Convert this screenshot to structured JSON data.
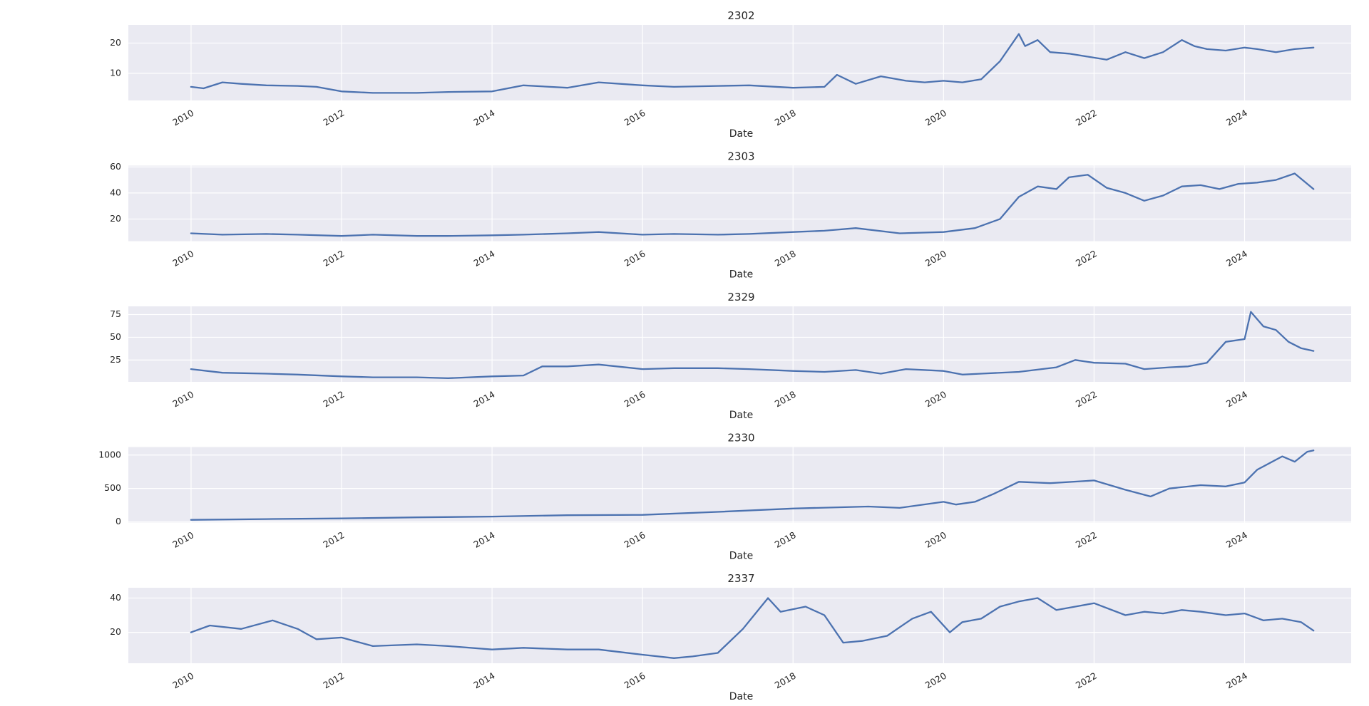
{
  "chart_data": [
    {
      "type": "line",
      "title": "2302",
      "xlabel": "Date",
      "ylabel": "",
      "grid": true,
      "xlim": [
        "2009-03",
        "2025-06"
      ],
      "ylim": [
        1,
        26
      ],
      "yticks": [
        10,
        20
      ],
      "xticks": [
        "2010",
        "2012",
        "2014",
        "2016",
        "2018",
        "2020",
        "2022",
        "2024"
      ],
      "series": [
        {
          "color": "#4c72b0",
          "x": [
            "2010-01",
            "2010-03",
            "2010-06",
            "2010-09",
            "2011-01",
            "2011-06",
            "2011-09",
            "2012-01",
            "2012-06",
            "2013-01",
            "2013-06",
            "2014-01",
            "2014-06",
            "2015-01",
            "2015-06",
            "2016-01",
            "2016-06",
            "2017-01",
            "2017-06",
            "2018-01",
            "2018-06",
            "2018-08",
            "2018-11",
            "2019-03",
            "2019-07",
            "2019-10",
            "2020-01",
            "2020-04",
            "2020-07",
            "2020-10",
            "2021-01",
            "2021-02",
            "2021-04",
            "2021-06",
            "2021-09",
            "2021-12",
            "2022-03",
            "2022-06",
            "2022-09",
            "2022-12",
            "2023-03",
            "2023-05",
            "2023-07",
            "2023-10",
            "2024-01",
            "2024-03",
            "2024-06",
            "2024-09",
            "2024-12"
          ],
          "values": [
            5.5,
            5.0,
            7.0,
            6.5,
            6.0,
            5.8,
            5.5,
            4.0,
            3.5,
            3.5,
            3.8,
            4.0,
            6.0,
            5.2,
            7.0,
            6.0,
            5.5,
            5.8,
            6.0,
            5.2,
            5.5,
            9.5,
            6.5,
            9.0,
            7.5,
            7.0,
            7.5,
            7.0,
            8.0,
            14.0,
            23.0,
            19.0,
            21.0,
            17.0,
            16.5,
            15.5,
            14.5,
            17.0,
            15.0,
            17.0,
            21.0,
            19.0,
            18.0,
            17.5,
            18.5,
            18.0,
            17.0,
            18.0,
            18.5
          ]
        }
      ]
    },
    {
      "type": "line",
      "title": "2303",
      "xlabel": "Date",
      "ylabel": "",
      "grid": true,
      "xlim": [
        "2009-03",
        "2025-06"
      ],
      "ylim": [
        3,
        61
      ],
      "yticks": [
        20,
        40,
        60
      ],
      "xticks": [
        "2010",
        "2012",
        "2014",
        "2016",
        "2018",
        "2020",
        "2022",
        "2024"
      ],
      "series": [
        {
          "color": "#4c72b0",
          "x": [
            "2010-01",
            "2010-06",
            "2011-01",
            "2011-06",
            "2012-01",
            "2012-06",
            "2013-01",
            "2013-06",
            "2014-01",
            "2014-06",
            "2015-01",
            "2015-06",
            "2016-01",
            "2016-06",
            "2017-01",
            "2017-06",
            "2018-01",
            "2018-06",
            "2018-11",
            "2019-06",
            "2020-01",
            "2020-06",
            "2020-10",
            "2021-01",
            "2021-04",
            "2021-07",
            "2021-09",
            "2021-12",
            "2022-03",
            "2022-06",
            "2022-09",
            "2022-12",
            "2023-03",
            "2023-06",
            "2023-09",
            "2023-12",
            "2024-03",
            "2024-06",
            "2024-09",
            "2024-12"
          ],
          "values": [
            9,
            8,
            8.5,
            8,
            7,
            8,
            7,
            7,
            7.5,
            8,
            9,
            10,
            8,
            8.5,
            8,
            8.5,
            10,
            11,
            13,
            9,
            10,
            13,
            20,
            37,
            45,
            43,
            52,
            54,
            44,
            40,
            34,
            38,
            45,
            46,
            43,
            47,
            48,
            50,
            55,
            43
          ]
        }
      ]
    },
    {
      "type": "line",
      "title": "2329",
      "xlabel": "Date",
      "ylabel": "",
      "grid": true,
      "xlim": [
        "2009-03",
        "2025-06"
      ],
      "ylim": [
        1,
        84
      ],
      "yticks": [
        25,
        50,
        75
      ],
      "xticks": [
        "2010",
        "2012",
        "2014",
        "2016",
        "2018",
        "2020",
        "2022",
        "2024"
      ],
      "series": [
        {
          "color": "#4c72b0",
          "x": [
            "2010-01",
            "2010-06",
            "2011-01",
            "2011-06",
            "2012-01",
            "2012-06",
            "2013-01",
            "2013-06",
            "2014-01",
            "2014-06",
            "2014-09",
            "2015-01",
            "2015-06",
            "2016-01",
            "2016-06",
            "2017-01",
            "2017-06",
            "2018-01",
            "2018-06",
            "2018-11",
            "2019-03",
            "2019-07",
            "2020-01",
            "2020-04",
            "2020-07",
            "2021-01",
            "2021-07",
            "2021-10",
            "2022-01",
            "2022-06",
            "2022-09",
            "2023-01",
            "2023-04",
            "2023-07",
            "2023-10",
            "2024-01",
            "2024-02",
            "2024-04",
            "2024-06",
            "2024-08",
            "2024-10",
            "2024-12"
          ],
          "values": [
            15,
            11,
            10,
            9,
            7,
            6,
            6,
            5,
            7,
            8,
            18,
            18,
            20,
            15,
            16,
            16,
            15,
            13,
            12,
            14,
            10,
            15,
            13,
            9,
            10,
            12,
            17,
            25,
            22,
            21,
            15,
            17,
            18,
            22,
            45,
            48,
            78,
            62,
            58,
            45,
            38,
            35
          ]
        }
      ]
    },
    {
      "type": "line",
      "title": "2330",
      "xlabel": "Date",
      "ylabel": "",
      "grid": true,
      "xlim": [
        "2009-03",
        "2025-06"
      ],
      "ylim": [
        -10,
        1120
      ],
      "yticks": [
        0,
        500,
        1000
      ],
      "xticks": [
        "2010",
        "2012",
        "2014",
        "2016",
        "2018",
        "2020",
        "2022",
        "2024"
      ],
      "series": [
        {
          "color": "#4c72b0",
          "x": [
            "2010-01",
            "2011-01",
            "2012-01",
            "2013-01",
            "2014-01",
            "2015-01",
            "2016-01",
            "2017-01",
            "2018-01",
            "2019-01",
            "2019-06",
            "2020-01",
            "2020-03",
            "2020-06",
            "2020-09",
            "2021-01",
            "2021-06",
            "2022-01",
            "2022-06",
            "2022-10",
            "2023-01",
            "2023-06",
            "2023-10",
            "2024-01",
            "2024-03",
            "2024-07",
            "2024-09",
            "2024-11",
            "2024-12"
          ],
          "values": [
            30,
            42,
            52,
            68,
            80,
            100,
            105,
            150,
            200,
            230,
            210,
            300,
            260,
            300,
            420,
            600,
            580,
            620,
            480,
            380,
            500,
            550,
            530,
            590,
            780,
            980,
            900,
            1050,
            1070
          ]
        }
      ]
    },
    {
      "type": "line",
      "title": "2337",
      "xlabel": "Date",
      "ylabel": "",
      "grid": true,
      "xlim": [
        "2009-03",
        "2025-06"
      ],
      "ylim": [
        2,
        46
      ],
      "yticks": [
        20,
        40
      ],
      "xticks": [
        "2010",
        "2012",
        "2014",
        "2016",
        "2018",
        "2020",
        "2022",
        "2024"
      ],
      "series": [
        {
          "color": "#4c72b0",
          "x": [
            "2010-01",
            "2010-04",
            "2010-09",
            "2011-02",
            "2011-06",
            "2011-09",
            "2012-01",
            "2012-06",
            "2013-01",
            "2013-06",
            "2014-01",
            "2014-06",
            "2015-01",
            "2015-06",
            "2016-01",
            "2016-06",
            "2016-09",
            "2017-01",
            "2017-05",
            "2017-09",
            "2017-11",
            "2018-03",
            "2018-06",
            "2018-09",
            "2018-12",
            "2019-04",
            "2019-08",
            "2019-11",
            "2020-02",
            "2020-04",
            "2020-07",
            "2020-10",
            "2021-01",
            "2021-04",
            "2021-07",
            "2021-10",
            "2022-01",
            "2022-06",
            "2022-09",
            "2022-12",
            "2023-03",
            "2023-06",
            "2023-10",
            "2024-01",
            "2024-04",
            "2024-07",
            "2024-10",
            "2024-12"
          ],
          "values": [
            20,
            24,
            22,
            27,
            22,
            16,
            17,
            12,
            13,
            12,
            10,
            11,
            10,
            10,
            7,
            5,
            6,
            8,
            22,
            40,
            32,
            35,
            30,
            14,
            15,
            18,
            28,
            32,
            20,
            26,
            28,
            35,
            38,
            40,
            33,
            35,
            37,
            30,
            32,
            31,
            33,
            32,
            30,
            31,
            27,
            28,
            26,
            21
          ]
        }
      ]
    }
  ]
}
